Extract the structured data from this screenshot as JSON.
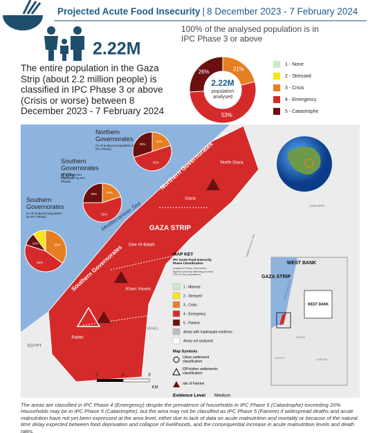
{
  "header": {
    "title": "Projected Acute Food Insecurity",
    "separator": "|",
    "period": "8 December 2023 - 7 February 2024"
  },
  "summary": {
    "population": "2.22M",
    "text": "The entire population in the Gaza Strip (about 2.2 million people) is classified in IPC Phase 3 or above (Crisis or worse) between 8 December 2023 - 7 February 2024",
    "donut_caption": "100% of the analysed population is in IPC Phase 3 or above"
  },
  "chart_data": [
    {
      "type": "donut",
      "center_label": "2.22M",
      "center_sublabel": "population analysed",
      "categories": [
        "1 - None",
        "2 - Stressed",
        "3 - Crisis",
        "4 - Emergency",
        "5 - Catastrophe"
      ],
      "colors": [
        "#cdeacb",
        "#f6e51b",
        "#e67e22",
        "#d42a2a",
        "#6b0f0f"
      ],
      "values": [
        0,
        0,
        21,
        53,
        26
      ],
      "value_labels": [
        null,
        null,
        "21%",
        "53%",
        "26%"
      ]
    },
    {
      "type": "pie",
      "title": "Northern Governorates",
      "subtitle": "(% of analysed population by IPC Phase)",
      "colors": [
        "#e67e22",
        "#d42a2a",
        "#6b0f0f"
      ],
      "values": [
        20,
        50,
        30
      ],
      "value_labels": [
        "20%",
        "50%",
        "30%"
      ]
    },
    {
      "type": "pie",
      "title": "Southern Governorates IDPs",
      "subtitle": "(% of analysed population by IPC Phase)",
      "colors": [
        "#e67e22",
        "#d42a2a",
        "#6b0f0f"
      ],
      "values": [
        20,
        55,
        25
      ],
      "value_labels": [
        "20%",
        "55%",
        "25%"
      ]
    },
    {
      "type": "pie",
      "title": "Southern Governorates",
      "subtitle": "(% of analysed population by IPC Phase)",
      "colors": [
        "#e67e22",
        "#d42a2a",
        "#6b0f0f",
        "#f6e51b"
      ],
      "values": [
        35,
        45,
        10,
        10
      ],
      "value_labels": [
        "35%",
        "45%",
        "10%",
        null
      ]
    }
  ],
  "map": {
    "labels": [
      "Northern Governorates",
      "North Gaza",
      "Gaza",
      "GAZA STRIP",
      "Deir Al-Balah",
      "Southern Governorates",
      "Khan Younis",
      "Rafah",
      "Mediterranean Sea",
      "ISRAEL",
      "EGYPT",
      "LEBANON",
      "Mediterranean Sea"
    ],
    "scale": [
      "0",
      "4",
      "8",
      "KM"
    ],
    "inset": [
      "WEST BANK",
      "GAZA STRIP",
      "WEST BANK",
      "ISRAEL",
      "EGYPT",
      "JORDAN",
      "Mediterranean Sea"
    ]
  },
  "map_key": {
    "title": "MAP KEY",
    "subtitle": "IPC Acute Food Insecurity Phase Classification",
    "note": "(mapped Phase represents highest severity affecting at least 20% of the population)",
    "items": [
      {
        "label": "1 - Minimal",
        "color": "#cdeacb"
      },
      {
        "label": "2 - Stressed",
        "color": "#f6e51b"
      },
      {
        "label": "3 - Crisis",
        "color": "#e67e22"
      },
      {
        "label": "4 - Emergency",
        "color": "#d42a2a"
      },
      {
        "label": "5 - Famine",
        "color": "#6b0f0f"
      },
      {
        "label": "Areas with inadequate evidence",
        "color": "#bbbbbb"
      },
      {
        "label": "Areas not analysed",
        "color": "#ffffff"
      }
    ],
    "symbols_title": "Map Symbols",
    "symbols": [
      "Urban settlement classification",
      "IDPs/other settlements classification",
      "risk of Famine"
    ],
    "evidence": "Evidence Level",
    "evidence_value": "Medium"
  },
  "footer": "The areas are classified in IPC Phase 4 (Emergency) despite the prevalence of households in IPC Phase 5 (Catastrophe) exceeding 20%. Households may be in IPC Phase 5 (Catastrophe), but the area may not be classified as IPC Phase 5 (Famine) if widespread deaths and acute malnutrition have not yet been expressed at the area level, either due to lack of data on acute malnutrition and mortality or because of the natural time delay expected between food deprivation and collapse of livelihoods, and the consequential increase in acute malnutrition levels and death rates."
}
